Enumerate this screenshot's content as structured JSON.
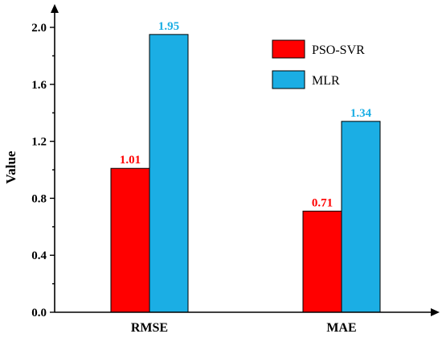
{
  "chart_data": {
    "type": "bar",
    "categories": [
      "RMSE",
      "MAE"
    ],
    "series": [
      {
        "name": "PSO-SVR",
        "values": [
          1.01,
          0.71
        ],
        "color": "#ff0000",
        "label_color": "#ff0000"
      },
      {
        "name": "MLR",
        "values": [
          1.95,
          1.34
        ],
        "color": "#1baee4",
        "label_color": "#1baee4"
      }
    ],
    "value_labels": [
      [
        "1.01",
        "0.71"
      ],
      [
        "1.95",
        "1.34"
      ]
    ],
    "ylabel": "Value",
    "xlabel": "",
    "ylim": [
      0,
      2.1
    ],
    "yticks": [
      "0.0",
      "0.4",
      "0.8",
      "1.2",
      "1.6",
      "2.0"
    ],
    "grid": false,
    "legend_position": "top-right"
  }
}
